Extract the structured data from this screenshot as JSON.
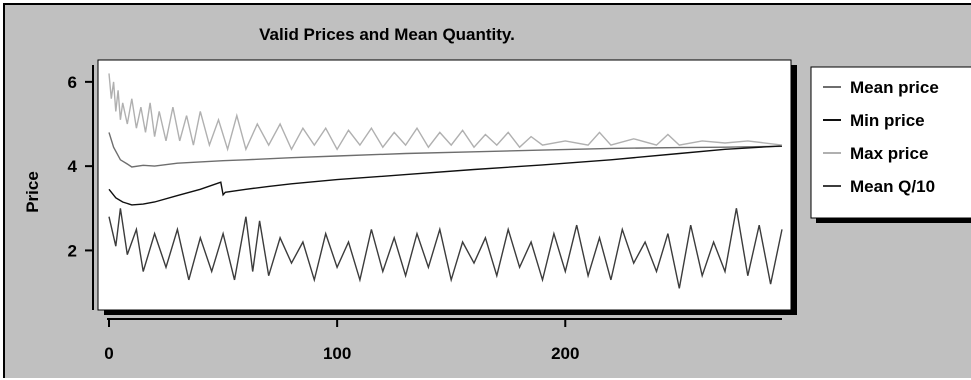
{
  "chart_data": {
    "type": "line",
    "title": "Valid Prices and Mean Quantity.",
    "xlabel": "",
    "ylabel": "Price",
    "xlim": [
      0,
      295
    ],
    "ylim": [
      0.8,
      6.4
    ],
    "xticks": [
      0,
      100,
      200
    ],
    "yticks": [
      2,
      4,
      6
    ],
    "grid": false,
    "legend_position": "right",
    "series": [
      {
        "name": "Mean price",
        "color": "#6e6e6e",
        "x": [
          0,
          2,
          5,
          8,
          10,
          15,
          20,
          30,
          40,
          50,
          60,
          80,
          100,
          130,
          160,
          190,
          220,
          250,
          270,
          295
        ],
        "values": [
          4.8,
          4.45,
          4.15,
          4.05,
          3.98,
          4.02,
          4.0,
          4.07,
          4.1,
          4.13,
          4.15,
          4.2,
          4.24,
          4.3,
          4.34,
          4.38,
          4.42,
          4.44,
          4.45,
          4.47
        ]
      },
      {
        "name": "Min price",
        "color": "#101010",
        "x": [
          0,
          3,
          6,
          10,
          15,
          20,
          30,
          40,
          49,
          50,
          51,
          60,
          70,
          80,
          100,
          130,
          160,
          190,
          220,
          250,
          270,
          295
        ],
        "values": [
          3.45,
          3.25,
          3.15,
          3.08,
          3.1,
          3.15,
          3.3,
          3.45,
          3.62,
          3.32,
          3.38,
          3.45,
          3.52,
          3.58,
          3.68,
          3.8,
          3.92,
          4.03,
          4.15,
          4.3,
          4.4,
          4.48
        ]
      },
      {
        "name": "Max price",
        "color": "#b0b0b0",
        "x": [
          0,
          1,
          2,
          3,
          4,
          5,
          6,
          8,
          10,
          12,
          14,
          16,
          18,
          20,
          22,
          25,
          28,
          31,
          34,
          37,
          40,
          44,
          48,
          52,
          56,
          60,
          65,
          70,
          75,
          80,
          85,
          90,
          95,
          100,
          105,
          110,
          115,
          120,
          125,
          130,
          135,
          140,
          145,
          150,
          155,
          160,
          165,
          170,
          175,
          180,
          185,
          190,
          200,
          210,
          215,
          220,
          230,
          240,
          245,
          250,
          260,
          270,
          280,
          295
        ],
        "values": [
          6.2,
          5.6,
          6.0,
          5.3,
          5.8,
          5.1,
          5.5,
          5.0,
          5.6,
          4.9,
          5.4,
          4.8,
          5.5,
          4.7,
          5.3,
          4.6,
          5.4,
          4.6,
          5.2,
          4.5,
          5.3,
          4.5,
          5.1,
          4.4,
          5.2,
          4.4,
          5.0,
          4.5,
          5.0,
          4.4,
          4.9,
          4.5,
          4.9,
          4.4,
          4.85,
          4.5,
          4.9,
          4.45,
          4.8,
          4.5,
          4.9,
          4.45,
          4.8,
          4.5,
          4.85,
          4.45,
          4.75,
          4.5,
          4.8,
          4.45,
          4.7,
          4.5,
          4.6,
          4.5,
          4.8,
          4.5,
          4.65,
          4.5,
          4.75,
          4.5,
          4.6,
          4.55,
          4.6,
          4.5
        ]
      },
      {
        "name": "Mean Q/10",
        "color": "#3c3c3c",
        "x": [
          0,
          3,
          5,
          8,
          12,
          15,
          20,
          25,
          30,
          35,
          40,
          45,
          50,
          55,
          60,
          63,
          66,
          70,
          75,
          80,
          85,
          90,
          95,
          100,
          105,
          110,
          115,
          120,
          125,
          130,
          135,
          140,
          145,
          150,
          155,
          160,
          165,
          170,
          175,
          180,
          185,
          190,
          195,
          200,
          205,
          210,
          215,
          220,
          225,
          230,
          235,
          240,
          245,
          250,
          255,
          260,
          265,
          270,
          275,
          280,
          285,
          290,
          295
        ],
        "values": [
          2.8,
          2.1,
          3.0,
          1.9,
          2.5,
          1.5,
          2.4,
          1.6,
          2.5,
          1.3,
          2.3,
          1.5,
          2.4,
          1.3,
          2.8,
          1.5,
          2.7,
          1.4,
          2.3,
          1.7,
          2.2,
          1.3,
          2.4,
          1.6,
          2.2,
          1.3,
          2.5,
          1.5,
          2.3,
          1.4,
          2.4,
          1.6,
          2.5,
          1.3,
          2.2,
          1.7,
          2.3,
          1.4,
          2.5,
          1.6,
          2.2,
          1.3,
          2.4,
          1.5,
          2.6,
          1.4,
          2.3,
          1.3,
          2.5,
          1.7,
          2.2,
          1.5,
          2.4,
          1.1,
          2.6,
          1.4,
          2.2,
          1.5,
          3.0,
          1.4,
          2.6,
          1.2,
          2.5
        ]
      }
    ]
  }
}
